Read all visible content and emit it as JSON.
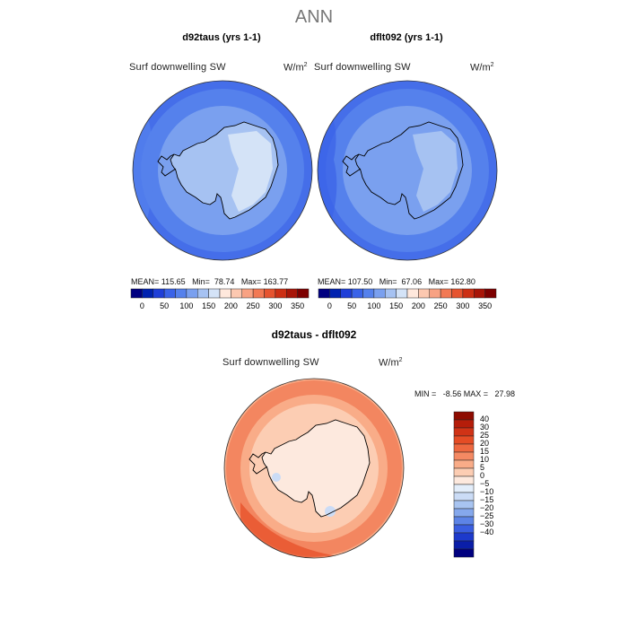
{
  "header": {
    "title": "ANN"
  },
  "colors": {
    "colorbar_top": [
      "#000080",
      "#0022b0",
      "#1f3fd8",
      "#3a63e8",
      "#5581ec",
      "#7aa0ef",
      "#a6c2f2",
      "#d4e3f7",
      "#ffe8dc",
      "#fcc8b0",
      "#f8a283",
      "#f27954",
      "#e65430",
      "#cc2f14",
      "#a81508",
      "#7d0000"
    ],
    "diff_pos": [
      "#fde9de",
      "#fccdb3",
      "#f9ac88",
      "#f48963",
      "#ee6840",
      "#e54c25",
      "#d03316",
      "#b51d0a",
      "#8e0b00"
    ],
    "diff_neg": [
      "#e3eefb",
      "#cbdcf6",
      "#a8c4f1",
      "#85a8ec",
      "#5d84e6",
      "#3a5ee0",
      "#1d3acc",
      "#0a1ea8",
      "#000080"
    ]
  },
  "panels": [
    {
      "title": "d92taus (yrs 1-1)",
      "variable": "Surf downwelling SW",
      "units": "W/m",
      "units_exp": "2",
      "stats": "MEAN= 115.65   Min=  78.74   Max= 163.77",
      "colorbar_ticks": [
        "0",
        "50",
        "100",
        "150",
        "200",
        "250",
        "300",
        "350"
      ],
      "ocean_level": 120,
      "coast_level": 110,
      "ice_level": 175
    },
    {
      "title": "dflt092 (yrs 1-1)",
      "variable": "Surf downwelling SW",
      "units": "W/m",
      "units_exp": "2",
      "stats": "MEAN= 107.50   Min=  67.06   Max= 162.80",
      "colorbar_ticks": [
        "0",
        "50",
        "100",
        "150",
        "200",
        "250",
        "300",
        "350"
      ],
      "ocean_level": 105,
      "coast_level": 100,
      "ice_level": 170
    }
  ],
  "difference": {
    "title": "d92taus - dflt092",
    "variable": "Surf downwelling SW",
    "units": "W/m",
    "units_exp": "2",
    "stats": "MIN =   -8.56 MAX =   27.98",
    "colorbar_ticks": [
      "40",
      "30",
      "25",
      "20",
      "15",
      "10",
      "5",
      "0",
      "−5",
      "−10",
      "−15",
      "−20",
      "−25",
      "−30",
      "−40"
    ]
  }
}
